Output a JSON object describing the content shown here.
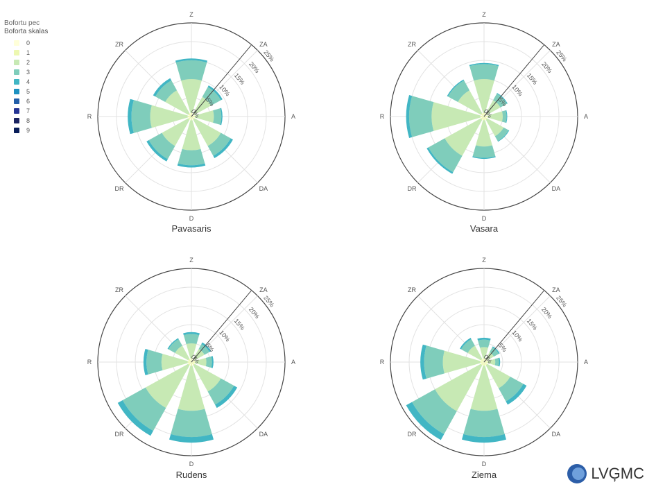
{
  "legend": {
    "title": "Bofortu pec",
    "subtitle": "Boforta skalas",
    "items": [
      {
        "label": "0",
        "color": "#ffffd9"
      },
      {
        "label": "1",
        "color": "#edf8b1"
      },
      {
        "label": "2",
        "color": "#c7e9b4"
      },
      {
        "label": "3",
        "color": "#7fcdbb"
      },
      {
        "label": "4",
        "color": "#41b6c4"
      },
      {
        "label": "5",
        "color": "#1d91c0"
      },
      {
        "label": "6",
        "color": "#225ea8"
      },
      {
        "label": "7",
        "color": "#253494"
      },
      {
        "label": "8",
        "color": "#1a2360"
      },
      {
        "label": "9",
        "color": "#081d58"
      }
    ]
  },
  "logo": {
    "text": "LVĢMC"
  },
  "chart_data": [
    {
      "type": "polar-bar",
      "title": "Pavasaris",
      "directions": [
        "Z",
        "ZA",
        "A",
        "DA",
        "D",
        "DR",
        "R",
        "ZR"
      ],
      "radial_ticks": [
        "0%",
        "5%",
        "10%",
        "15%",
        "20%",
        "25%"
      ],
      "rmax": 25,
      "series": [
        {
          "name": "1",
          "values": [
            1,
            1,
            1,
            1,
            1,
            1,
            1,
            1
          ]
        },
        {
          "name": "2",
          "values": [
            9,
            5,
            5,
            8,
            8,
            8,
            10,
            7
          ]
        },
        {
          "name": "3",
          "values": [
            5,
            3,
            2,
            3,
            4,
            4,
            5,
            3
          ]
        },
        {
          "name": "4",
          "values": [
            0.5,
            0.5,
            0.3,
            0.7,
            0.6,
            0.7,
            1,
            0.7
          ]
        }
      ]
    },
    {
      "type": "polar-bar",
      "title": "Vasara",
      "directions": [
        "Z",
        "ZA",
        "A",
        "DA",
        "D",
        "DR",
        "R",
        "ZR"
      ],
      "radial_ticks": [
        "0%",
        "5%",
        "10%",
        "15%",
        "20%",
        "25%"
      ],
      "rmax": 25,
      "series": [
        {
          "name": "1",
          "values": [
            1,
            1,
            1,
            1,
            1,
            1,
            1,
            1
          ]
        },
        {
          "name": "2",
          "values": [
            9,
            4,
            4,
            5,
            7,
            11,
            13,
            7
          ]
        },
        {
          "name": "3",
          "values": [
            4,
            2,
            1,
            1.5,
            3,
            5,
            6,
            3
          ]
        },
        {
          "name": "4",
          "values": [
            0.3,
            0.2,
            0.2,
            0.2,
            0.3,
            0.5,
            0.8,
            0.3
          ]
        }
      ]
    },
    {
      "type": "polar-bar",
      "title": "Rudens",
      "directions": [
        "Z",
        "ZA",
        "A",
        "DA",
        "D",
        "DR",
        "R",
        "ZR"
      ],
      "radial_ticks": [
        "0%",
        "5%",
        "10%",
        "15%",
        "20%",
        "25%"
      ],
      "rmax": 25,
      "series": [
        {
          "name": "1",
          "values": [
            1,
            1,
            1,
            1,
            1,
            1,
            1,
            1
          ]
        },
        {
          "name": "2",
          "values": [
            4,
            3,
            3,
            8,
            12,
            13,
            7,
            4
          ]
        },
        {
          "name": "3",
          "values": [
            2.5,
            1.5,
            1.5,
            4,
            7,
            7,
            4,
            2
          ]
        },
        {
          "name": "4",
          "values": [
            0.5,
            0.5,
            0.4,
            1,
            1.5,
            1.5,
            0.8,
            0.3
          ]
        }
      ]
    },
    {
      "type": "polar-bar",
      "title": "Ziema",
      "directions": [
        "Z",
        "ZA",
        "A",
        "DA",
        "D",
        "DR",
        "R",
        "ZR"
      ],
      "radial_ticks": [
        "0%",
        "5%",
        "10%",
        "15%",
        "20%",
        "25%"
      ],
      "rmax": 25,
      "series": [
        {
          "name": "1",
          "values": [
            1,
            1,
            1,
            1,
            1,
            1,
            1,
            1
          ]
        },
        {
          "name": "2",
          "values": [
            3,
            2,
            2,
            7,
            12,
            14,
            10,
            4
          ]
        },
        {
          "name": "3",
          "values": [
            2,
            1.5,
            1,
            4,
            7,
            7,
            5,
            2
          ]
        },
        {
          "name": "4",
          "values": [
            0.5,
            0.3,
            0.3,
            1,
            1.5,
            1.8,
            1,
            0.4
          ]
        }
      ]
    }
  ]
}
